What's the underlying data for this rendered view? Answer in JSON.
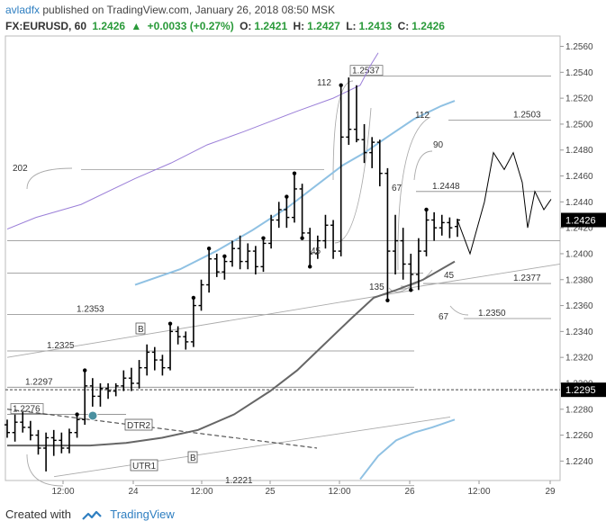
{
  "header": {
    "author": "avladfx",
    "published_text": "published on TradingView.com, January 26, 2018 08:50 MSK",
    "symbol": "FX:EURUSD, 60",
    "last": "1.2426",
    "arrow": "▲",
    "change": "+0.0033 (+0.27%)",
    "o_label": "O:",
    "o_val": "1.2421",
    "h_label": "H:",
    "h_val": "1.2427",
    "l_label": "L:",
    "l_val": "1.2413",
    "c_label": "C:",
    "c_val": "1.2426"
  },
  "footer": {
    "created_with": "Created with",
    "brand": "TradingView"
  },
  "colors": {
    "bar": "#000000",
    "ma_blue": "#8fc1e3",
    "ma_gray": "#666666",
    "ma_purple": "#9b7fd8",
    "level": "#888888",
    "last_price_bg": "#000000",
    "grid": "#e4e4e4"
  },
  "chart_data": {
    "type": "ohlc",
    "y_ticks": [
      "1.2560",
      "1.2540",
      "1.2520",
      "1.2500",
      "1.2480",
      "1.2460",
      "1.2440",
      "1.2420",
      "1.2400",
      "1.2380",
      "1.2360",
      "1.2340",
      "1.2320",
      "1.2300",
      "1.2280",
      "1.2260",
      "1.2240"
    ],
    "x_ticks": [
      "12:00",
      "24",
      "12:00",
      "25",
      "12:00",
      "26",
      "12:00",
      "29"
    ],
    "ylim": [
      1.2225,
      1.2568
    ],
    "last_price_label": "1.2426",
    "marked_price_label": "1.2295",
    "level_labels": [
      "1.2537",
      "1.2503",
      "1.2448",
      "1.2377",
      "1.2350",
      "1.2353",
      "1.2325",
      "1.2297",
      "1.2276",
      "1.2221"
    ],
    "cycle_labels": [
      "202",
      "112",
      "112",
      "90",
      "67",
      "45",
      "45",
      "135",
      "67"
    ],
    "tags": [
      "DTR2",
      "UTR1",
      "B",
      "B"
    ],
    "bars": [
      {
        "o": 1.2268,
        "h": 1.2272,
        "l": 1.2258,
        "c": 1.2262
      },
      {
        "o": 1.2262,
        "h": 1.2276,
        "l": 1.2255,
        "c": 1.227
      },
      {
        "o": 1.227,
        "h": 1.2278,
        "l": 1.2262,
        "c": 1.2266
      },
      {
        "o": 1.2266,
        "h": 1.2271,
        "l": 1.2256,
        "c": 1.226
      },
      {
        "o": 1.226,
        "h": 1.2264,
        "l": 1.2245,
        "c": 1.225
      },
      {
        "o": 1.225,
        "h": 1.2262,
        "l": 1.2232,
        "c": 1.2258
      },
      {
        "o": 1.2258,
        "h": 1.2264,
        "l": 1.2244,
        "c": 1.2256
      },
      {
        "o": 1.2256,
        "h": 1.2262,
        "l": 1.2246,
        "c": 1.225
      },
      {
        "o": 1.225,
        "h": 1.2265,
        "l": 1.2246,
        "c": 1.2262
      },
      {
        "o": 1.2262,
        "h": 1.2276,
        "l": 1.2258,
        "c": 1.2272
      },
      {
        "o": 1.2272,
        "h": 1.231,
        "l": 1.2268,
        "c": 1.2298
      },
      {
        "o": 1.2298,
        "h": 1.2304,
        "l": 1.2282,
        "c": 1.229
      },
      {
        "o": 1.229,
        "h": 1.23,
        "l": 1.2282,
        "c": 1.2296
      },
      {
        "o": 1.2296,
        "h": 1.23,
        "l": 1.2288,
        "c": 1.2294
      },
      {
        "o": 1.2294,
        "h": 1.23,
        "l": 1.229,
        "c": 1.2298
      },
      {
        "o": 1.2298,
        "h": 1.231,
        "l": 1.2294,
        "c": 1.2304
      },
      {
        "o": 1.2304,
        "h": 1.2312,
        "l": 1.2294,
        "c": 1.23
      },
      {
        "o": 1.23,
        "h": 1.2318,
        "l": 1.2296,
        "c": 1.2312
      },
      {
        "o": 1.2312,
        "h": 1.233,
        "l": 1.2306,
        "c": 1.2324
      },
      {
        "o": 1.2324,
        "h": 1.2328,
        "l": 1.231,
        "c": 1.2318
      },
      {
        "o": 1.2318,
        "h": 1.2322,
        "l": 1.2306,
        "c": 1.2312
      },
      {
        "o": 1.2312,
        "h": 1.2346,
        "l": 1.231,
        "c": 1.234
      },
      {
        "o": 1.234,
        "h": 1.2344,
        "l": 1.233,
        "c": 1.2336
      },
      {
        "o": 1.2336,
        "h": 1.234,
        "l": 1.2326,
        "c": 1.2332
      },
      {
        "o": 1.2332,
        "h": 1.2366,
        "l": 1.2328,
        "c": 1.236
      },
      {
        "o": 1.236,
        "h": 1.238,
        "l": 1.2356,
        "c": 1.2376
      },
      {
        "o": 1.2376,
        "h": 1.2404,
        "l": 1.237,
        "c": 1.2396
      },
      {
        "o": 1.2396,
        "h": 1.24,
        "l": 1.2382,
        "c": 1.2386
      },
      {
        "o": 1.2386,
        "h": 1.2398,
        "l": 1.238,
        "c": 1.2394
      },
      {
        "o": 1.2394,
        "h": 1.241,
        "l": 1.239,
        "c": 1.2404
      },
      {
        "o": 1.2404,
        "h": 1.2414,
        "l": 1.2388,
        "c": 1.2394
      },
      {
        "o": 1.2394,
        "h": 1.2408,
        "l": 1.2388,
        "c": 1.2402
      },
      {
        "o": 1.2402,
        "h": 1.2406,
        "l": 1.2384,
        "c": 1.239
      },
      {
        "o": 1.239,
        "h": 1.2412,
        "l": 1.2386,
        "c": 1.2408
      },
      {
        "o": 1.2408,
        "h": 1.243,
        "l": 1.2404,
        "c": 1.2426
      },
      {
        "o": 1.2426,
        "h": 1.244,
        "l": 1.242,
        "c": 1.2434
      },
      {
        "o": 1.2434,
        "h": 1.2444,
        "l": 1.242,
        "c": 1.2428
      },
      {
        "o": 1.2428,
        "h": 1.2462,
        "l": 1.2424,
        "c": 1.245
      },
      {
        "o": 1.245,
        "h": 1.2454,
        "l": 1.2412,
        "c": 1.2416
      },
      {
        "o": 1.2416,
        "h": 1.242,
        "l": 1.239,
        "c": 1.24
      },
      {
        "o": 1.24,
        "h": 1.2414,
        "l": 1.2396,
        "c": 1.241
      },
      {
        "o": 1.241,
        "h": 1.243,
        "l": 1.2404,
        "c": 1.2422
      },
      {
        "o": 1.2422,
        "h": 1.2426,
        "l": 1.2396,
        "c": 1.2402
      },
      {
        "o": 1.2402,
        "h": 1.253,
        "l": 1.2398,
        "c": 1.249
      },
      {
        "o": 1.249,
        "h": 1.2536,
        "l": 1.2484,
        "c": 1.2496
      },
      {
        "o": 1.2496,
        "h": 1.253,
        "l": 1.2486,
        "c": 1.2488
      },
      {
        "o": 1.2488,
        "h": 1.25,
        "l": 1.247,
        "c": 1.2478
      },
      {
        "o": 1.2478,
        "h": 1.249,
        "l": 1.2466,
        "c": 1.2486
      },
      {
        "o": 1.2486,
        "h": 1.2488,
        "l": 1.2452,
        "c": 1.2462
      },
      {
        "o": 1.2462,
        "h": 1.2466,
        "l": 1.2364,
        "c": 1.2402
      },
      {
        "o": 1.2402,
        "h": 1.243,
        "l": 1.2384,
        "c": 1.241
      },
      {
        "o": 1.241,
        "h": 1.242,
        "l": 1.238,
        "c": 1.2392
      },
      {
        "o": 1.2392,
        "h": 1.24,
        "l": 1.2372,
        "c": 1.2384
      },
      {
        "o": 1.2384,
        "h": 1.2412,
        "l": 1.2372,
        "c": 1.2402
      },
      {
        "o": 1.2402,
        "h": 1.2434,
        "l": 1.2398,
        "c": 1.2426
      },
      {
        "o": 1.2426,
        "h": 1.2432,
        "l": 1.241,
        "c": 1.242
      },
      {
        "o": 1.242,
        "h": 1.243,
        "l": 1.2414,
        "c": 1.2424
      },
      {
        "o": 1.2424,
        "h": 1.2428,
        "l": 1.2412,
        "c": 1.242
      },
      {
        "o": 1.2421,
        "h": 1.2427,
        "l": 1.2413,
        "c": 1.2426
      }
    ],
    "projection": [
      1.2426,
      1.24,
      1.244,
      1.2478,
      1.2465,
      1.2478,
      1.2455,
      1.242,
      1.2448,
      1.2434,
      1.2442
    ]
  }
}
